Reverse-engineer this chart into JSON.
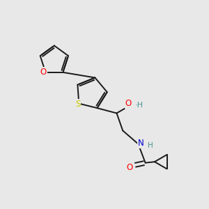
{
  "background_color": "#e8e8e8",
  "bond_color": "#1a1a1a",
  "atom_colors": {
    "O": "#ff0000",
    "S": "#cccc00",
    "N": "#0000cd",
    "H_teal": "#4a9090",
    "C": "#1a1a1a"
  },
  "figsize": [
    3.0,
    3.0
  ],
  "dpi": 100,
  "lw": 1.4,
  "fs": 8.5
}
